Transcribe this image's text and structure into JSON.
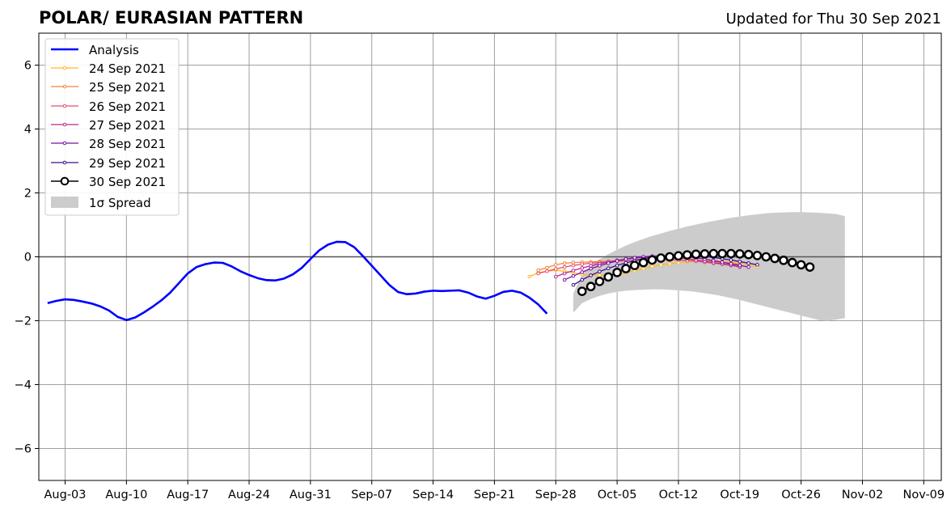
{
  "header": {
    "title": "POLAR/ EURASIAN  PATTERN",
    "updated": "Updated for Thu 30 Sep 2021"
  },
  "legend": {
    "entries": [
      {
        "key": "analysis",
        "label": "Analysis"
      },
      {
        "key": "s24",
        "label": "24 Sep 2021"
      },
      {
        "key": "s25",
        "label": "25 Sep 2021"
      },
      {
        "key": "s26",
        "label": "26 Sep 2021"
      },
      {
        "key": "s27",
        "label": "27 Sep 2021"
      },
      {
        "key": "s28",
        "label": "28 Sep 2021"
      },
      {
        "key": "s29",
        "label": "29 Sep 2021"
      },
      {
        "key": "s30",
        "label": "30 Sep 2021"
      },
      {
        "key": "spread",
        "label": "1σ Spread"
      }
    ]
  },
  "chart_data": {
    "type": "line",
    "title": "POLAR/ EURASIAN  PATTERN",
    "xlabel": "",
    "ylabel": "",
    "xlim": [
      "2021-07-31",
      "2021-11-11"
    ],
    "ylim": [
      -7,
      7
    ],
    "x_tick_labels": [
      "Aug-03",
      "Aug-10",
      "Aug-17",
      "Aug-24",
      "Aug-31",
      "Sep-07",
      "Sep-14",
      "Sep-21",
      "Sep-28",
      "Oct-05",
      "Oct-12",
      "Oct-19",
      "Oct-26",
      "Nov-02",
      "Nov-09"
    ],
    "x_tick_dates": [
      "2021-08-03",
      "2021-08-10",
      "2021-08-17",
      "2021-08-24",
      "2021-08-31",
      "2021-09-07",
      "2021-09-14",
      "2021-09-21",
      "2021-09-28",
      "2021-10-05",
      "2021-10-12",
      "2021-10-19",
      "2021-10-26",
      "2021-11-02",
      "2021-11-09"
    ],
    "y_ticks": [
      -6,
      -4,
      -2,
      0,
      2,
      4,
      6
    ],
    "y_tick_labels": [
      "−6",
      "−4",
      "−2",
      "0",
      "2",
      "4",
      "6"
    ],
    "grid": true,
    "legend_position": "upper-left",
    "zero_line": true,
    "analysis": {
      "name": "Analysis",
      "color": "#0000ff",
      "start": "2021-08-01",
      "values": [
        -1.45,
        -1.38,
        -1.33,
        -1.35,
        -1.4,
        -1.46,
        -1.55,
        -1.68,
        -1.88,
        -1.98,
        -1.9,
        -1.74,
        -1.56,
        -1.36,
        -1.12,
        -0.82,
        -0.52,
        -0.32,
        -0.23,
        -0.18,
        -0.19,
        -0.3,
        -0.45,
        -0.57,
        -0.67,
        -0.73,
        -0.74,
        -0.68,
        -0.55,
        -0.35,
        -0.07,
        0.2,
        0.38,
        0.47,
        0.46,
        0.3,
        0.02,
        -0.28,
        -0.58,
        -0.88,
        -1.1,
        -1.17,
        -1.15,
        -1.09,
        -1.06,
        -1.07,
        -1.06,
        -1.05,
        -1.12,
        -1.24,
        -1.31,
        -1.22,
        -1.1,
        -1.06,
        -1.12,
        -1.28,
        -1.49,
        -1.78
      ]
    },
    "forecasts": [
      {
        "name": "24 Sep 2021",
        "color": "#ffb820",
        "start": "2021-09-25",
        "values": [
          -0.62,
          -0.5,
          -0.45,
          -0.42,
          -0.45,
          -0.5,
          -0.55,
          -0.57,
          -0.58,
          -0.57,
          -0.55,
          -0.5,
          -0.43,
          -0.37,
          -0.3,
          -0.26,
          -0.22,
          -0.18,
          -0.15,
          -0.13,
          -0.12,
          -0.12,
          -0.14,
          -0.17,
          -0.2,
          -0.25,
          -0.31
        ]
      },
      {
        "name": "25 Sep 2021",
        "color": "#f7823a",
        "start": "2021-09-26",
        "values": [
          -0.42,
          -0.34,
          -0.25,
          -0.2,
          -0.18,
          -0.17,
          -0.16,
          -0.15,
          -0.14,
          -0.13,
          -0.12,
          -0.11,
          -0.1,
          -0.1,
          -0.1,
          -0.1,
          -0.1,
          -0.11,
          -0.12,
          -0.13,
          -0.15,
          -0.17,
          -0.2,
          -0.24
        ]
      },
      {
        "name": "26 Sep 2021",
        "color": "#e0506e",
        "start": "2021-09-26",
        "values": [
          -0.52,
          -0.45,
          -0.38,
          -0.32,
          -0.27,
          -0.23,
          -0.2,
          -0.18,
          -0.16,
          -0.14,
          -0.12,
          -0.1,
          -0.08,
          -0.07,
          -0.07,
          -0.08,
          -0.1,
          -0.12,
          -0.14,
          -0.17,
          -0.2,
          -0.23,
          -0.27,
          -0.32
        ]
      },
      {
        "name": "27 Sep 2021",
        "color": "#b8288e",
        "start": "2021-09-28",
        "values": [
          -0.62,
          -0.52,
          -0.43,
          -0.35,
          -0.28,
          -0.22,
          -0.16,
          -0.11,
          -0.07,
          -0.04,
          -0.02,
          -0.01,
          0.0,
          -0.01,
          -0.03,
          -0.06,
          -0.1,
          -0.14,
          -0.18,
          -0.22,
          -0.26,
          -0.31
        ]
      },
      {
        "name": "28 Sep 2021",
        "color": "#7b0ea6",
        "start": "2021-09-29",
        "values": [
          -0.72,
          -0.6,
          -0.48,
          -0.37,
          -0.28,
          -0.2,
          -0.13,
          -0.07,
          -0.03,
          0.0,
          0.02,
          0.03,
          0.03,
          0.02,
          0.0,
          -0.03,
          -0.07,
          -0.12,
          -0.17,
          -0.22,
          -0.27,
          -0.32
        ]
      },
      {
        "name": "29 Sep 2021",
        "color": "#3c0c8a",
        "start": "2021-09-30",
        "values": [
          -0.88,
          -0.72,
          -0.58,
          -0.46,
          -0.36,
          -0.27,
          -0.19,
          -0.12,
          -0.06,
          -0.02,
          0.01,
          0.03,
          0.04,
          0.04,
          0.03,
          0.01,
          -0.02,
          -0.06,
          -0.1,
          -0.15,
          -0.2,
          -0.25
        ]
      }
    ],
    "latest": {
      "name": "30 Sep 2021",
      "color": "#000000",
      "start": "2021-10-01",
      "values": [
        -1.08,
        -0.93,
        -0.77,
        -0.63,
        -0.49,
        -0.37,
        -0.27,
        -0.18,
        -0.1,
        -0.04,
        0.0,
        0.03,
        0.06,
        0.08,
        0.09,
        0.1,
        0.1,
        0.1,
        0.09,
        0.07,
        0.04,
        0.0,
        -0.05,
        -0.11,
        -0.18,
        -0.25,
        -0.32
      ]
    },
    "spread": {
      "name": "1σ Spread",
      "color": "#cccccc",
      "start": "2021-09-30",
      "upper": [
        -1.15,
        -0.55,
        -0.28,
        -0.08,
        0.08,
        0.22,
        0.35,
        0.46,
        0.56,
        0.65,
        0.73,
        0.81,
        0.88,
        0.95,
        1.01,
        1.07,
        1.12,
        1.17,
        1.22,
        1.26,
        1.3,
        1.33,
        1.36,
        1.38,
        1.39,
        1.4,
        1.4,
        1.39,
        1.38,
        1.36,
        1.34,
        1.27
      ],
      "lower": [
        -1.75,
        -1.45,
        -1.32,
        -1.22,
        -1.15,
        -1.1,
        -1.06,
        -1.04,
        -1.03,
        -1.02,
        -1.02,
        -1.03,
        -1.05,
        -1.07,
        -1.1,
        -1.14,
        -1.18,
        -1.23,
        -1.29,
        -1.35,
        -1.42,
        -1.49,
        -1.56,
        -1.63,
        -1.7,
        -1.77,
        -1.84,
        -1.91,
        -1.98,
        -2.0,
        -1.97,
        -1.92
      ]
    }
  }
}
